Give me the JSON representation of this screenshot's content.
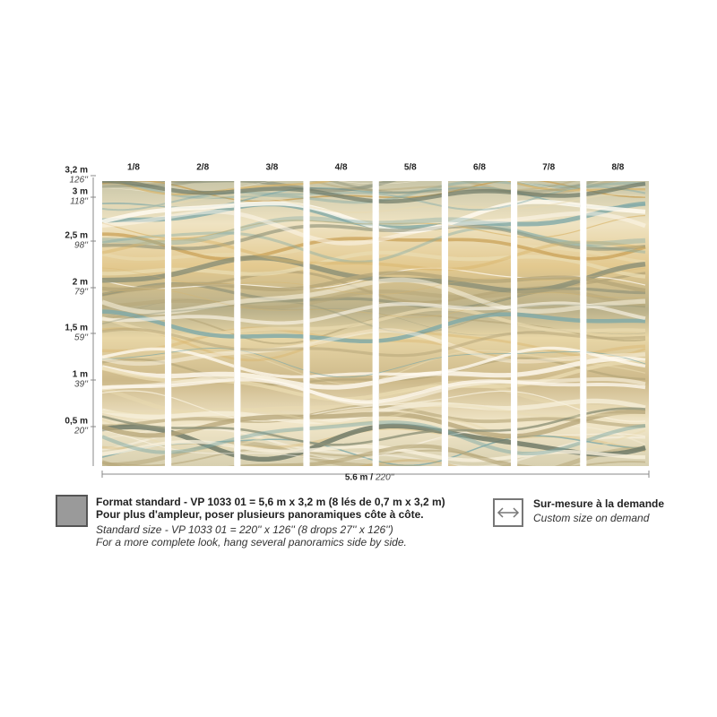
{
  "panels": [
    "1/8",
    "2/8",
    "3/8",
    "4/8",
    "5/8",
    "6/8",
    "7/8",
    "8/8"
  ],
  "heights": [
    {
      "metric": "3,2 m",
      "imperial": "126''"
    },
    {
      "metric": "3 m",
      "imperial": "118''"
    },
    {
      "metric": "2,5 m",
      "imperial": "98''"
    },
    {
      "metric": "2 m",
      "imperial": "79''"
    },
    {
      "metric": "1,5 m",
      "imperial": "59''"
    },
    {
      "metric": "1 m",
      "imperial": "39''"
    },
    {
      "metric": "0,5 m",
      "imperial": "20''"
    }
  ],
  "width": {
    "metric": "5.6 m /",
    "imperial": "220''"
  },
  "standard": {
    "line1": "Format standard - VP 1033 01 = 5,6 m x 3,2 m (8 lés de 0,7 m x 3,2 m)",
    "line2": "Pour plus d'ampleur, poser plusieurs panoramiques côte à côte.",
    "line3": "Standard size - VP 1033 01 = 220'' x 126'' (8 drops 27'' x 126'')",
    "line4": "For a more complete look, hang several panoramics side by side."
  },
  "custom": {
    "line1": "Sur-mesure à la demande",
    "line2": "Custom size on demand"
  }
}
